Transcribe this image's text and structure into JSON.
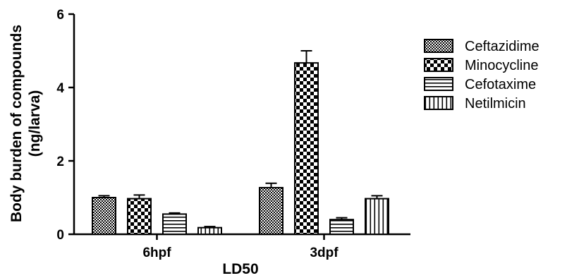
{
  "chart_data": {
    "type": "bar",
    "title": "",
    "xlabel": "LD50",
    "ylabel_line1": "Body burden of compounds",
    "ylabel_line2": "(ng/larva)",
    "categories": [
      "6hpf",
      "3dpf"
    ],
    "ylim": [
      0,
      6
    ],
    "yticks": [
      "0",
      "2",
      "4",
      "6"
    ],
    "grid": false,
    "legend_position": "right",
    "error_bars": true,
    "series": [
      {
        "name": "Ceftazidime",
        "pattern": "checker-small",
        "values": [
          1.0,
          1.27
        ],
        "errors": [
          0.05,
          0.12
        ]
      },
      {
        "name": "Minocycline",
        "pattern": "checker-large",
        "values": [
          0.97,
          4.67
        ],
        "errors": [
          0.1,
          0.33
        ]
      },
      {
        "name": "Cefotaxime",
        "pattern": "horizontal-lines",
        "values": [
          0.55,
          0.4
        ],
        "errors": [
          0.03,
          0.05
        ]
      },
      {
        "name": "Netilmicin",
        "pattern": "vertical-lines",
        "values": [
          0.18,
          0.97
        ],
        "errors": [
          0.03,
          0.08
        ]
      }
    ],
    "colors": {
      "bar_stroke": "#000000",
      "pattern_ink": "#000000",
      "background": "#ffffff"
    }
  }
}
